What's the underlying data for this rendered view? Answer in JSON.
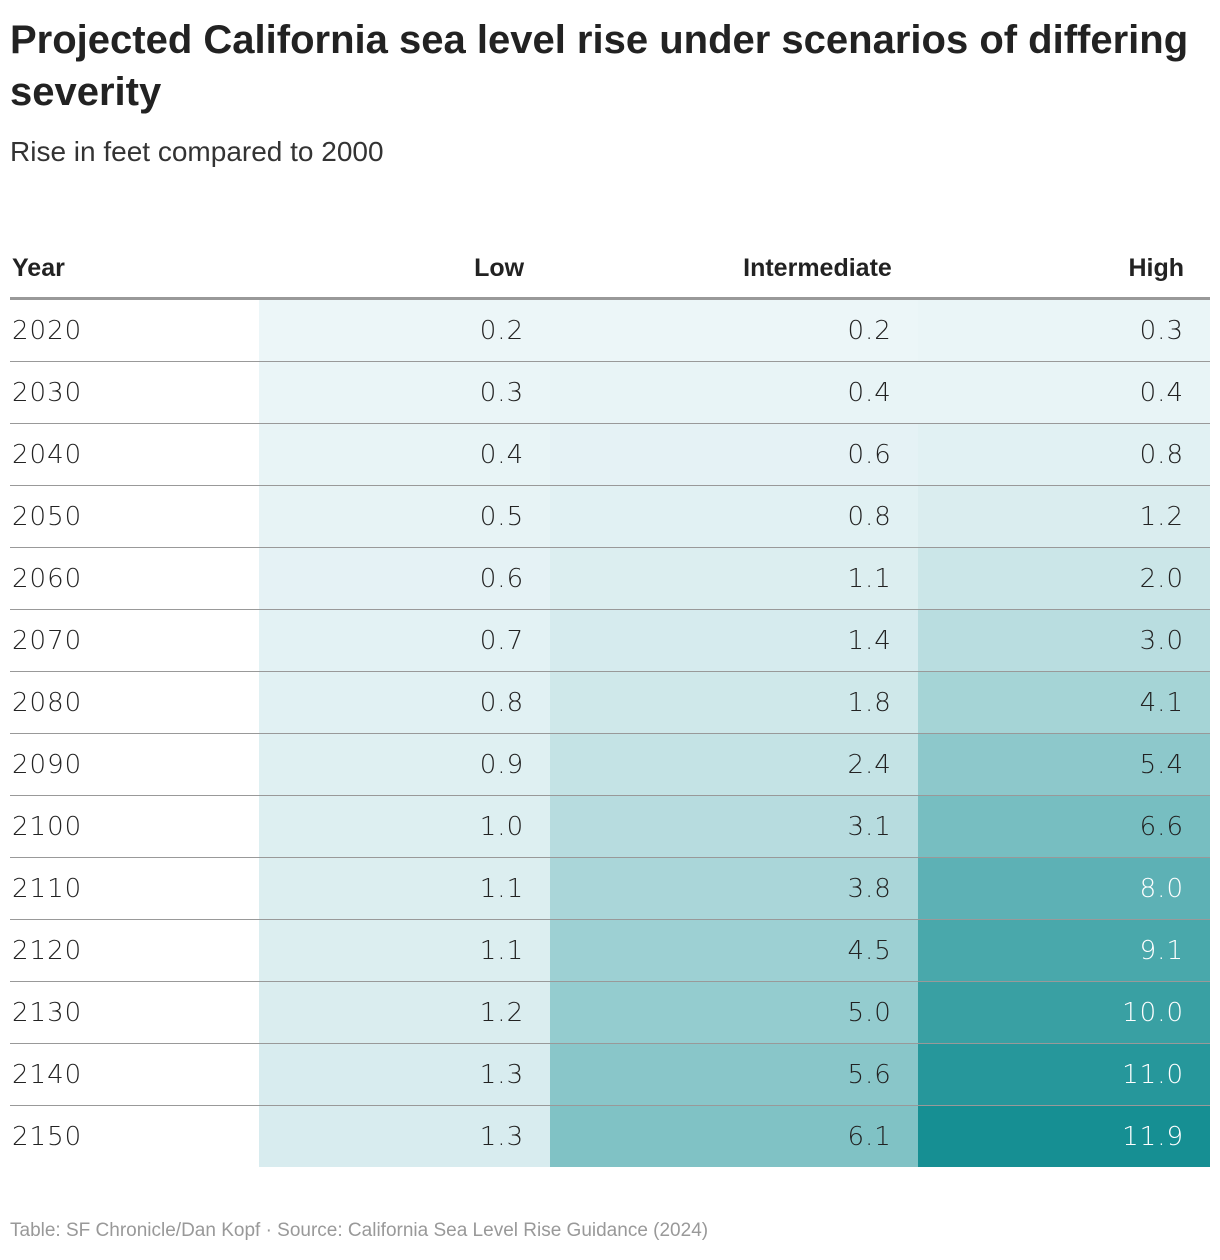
{
  "title": "Projected California sea level rise under scenarios of differing severity",
  "subtitle": "Rise in feet compared to 2000",
  "footer": "Table: SF Chronicle/Dan Kopf · Source: California Sea Level Rise Guidance (2024)",
  "colors": {
    "scale_low": "#ecf6f8",
    "scale_high": "#168f93",
    "text_dark": "#222222",
    "text_light": "#ffffff"
  },
  "chart_data": {
    "type": "table",
    "columns": [
      "Year",
      "Low",
      "Intermediate",
      "High"
    ],
    "rows": [
      [
        "2020",
        "0.2",
        "0.2",
        "0.3"
      ],
      [
        "2030",
        "0.3",
        "0.4",
        "0.4"
      ],
      [
        "2040",
        "0.4",
        "0.6",
        "0.8"
      ],
      [
        "2050",
        "0.5",
        "0.8",
        "1.2"
      ],
      [
        "2060",
        "0.6",
        "1.1",
        "2.0"
      ],
      [
        "2070",
        "0.7",
        "1.4",
        "3.0"
      ],
      [
        "2080",
        "0.8",
        "1.8",
        "4.1"
      ],
      [
        "2090",
        "0.9",
        "2.4",
        "5.4"
      ],
      [
        "2100",
        "1.0",
        "3.1",
        "6.6"
      ],
      [
        "2110",
        "1.1",
        "3.8",
        "8.0"
      ],
      [
        "2120",
        "1.1",
        "4.5",
        "9.1"
      ],
      [
        "2130",
        "1.2",
        "5.0",
        "10.0"
      ],
      [
        "2140",
        "1.3",
        "5.6",
        "11.0"
      ],
      [
        "2150",
        "1.3",
        "6.1",
        "11.9"
      ]
    ],
    "color_scale": {
      "min": 0.2,
      "max": 11.9,
      "per_column": false
    }
  }
}
